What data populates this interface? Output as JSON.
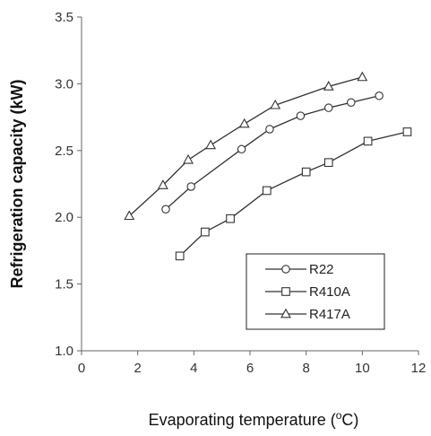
{
  "chart_data": {
    "type": "line",
    "xlabel": "Evaporating temperature (",
    "xlabel_sup": "o",
    "xlabel_unit": "C)",
    "ylabel": "Refrigeration capacity (kW)",
    "xlim": [
      0,
      12
    ],
    "ylim": [
      1.0,
      3.5
    ],
    "x_ticks": [
      "0",
      "2",
      "4",
      "6",
      "8",
      "10",
      "12"
    ],
    "y_ticks": [
      "1.0",
      "1.5",
      "2.0",
      "2.5",
      "3.0",
      "3.5"
    ],
    "grid": false,
    "legend_position": "bottom-right",
    "series": [
      {
        "name": "R22",
        "marker": "circle",
        "x": [
          3.0,
          3.9,
          5.7,
          6.7,
          7.8,
          8.8,
          9.6,
          10.6
        ],
        "y": [
          2.06,
          2.23,
          2.51,
          2.66,
          2.76,
          2.82,
          2.86,
          2.91
        ]
      },
      {
        "name": "R410A",
        "marker": "square",
        "x": [
          3.5,
          4.4,
          5.3,
          6.6,
          8.0,
          8.8,
          10.2,
          11.6
        ],
        "y": [
          1.71,
          1.89,
          1.99,
          2.2,
          2.34,
          2.41,
          2.57,
          2.64
        ]
      },
      {
        "name": "R417A",
        "marker": "triangle",
        "x": [
          1.7,
          2.9,
          3.8,
          4.6,
          5.8,
          6.9,
          8.8,
          10.0
        ],
        "y": [
          2.01,
          2.24,
          2.43,
          2.54,
          2.7,
          2.84,
          2.98,
          3.05
        ]
      }
    ],
    "colors": {
      "line": "#333333",
      "axis": "#666666",
      "marker_fill": "#ffffff"
    }
  }
}
